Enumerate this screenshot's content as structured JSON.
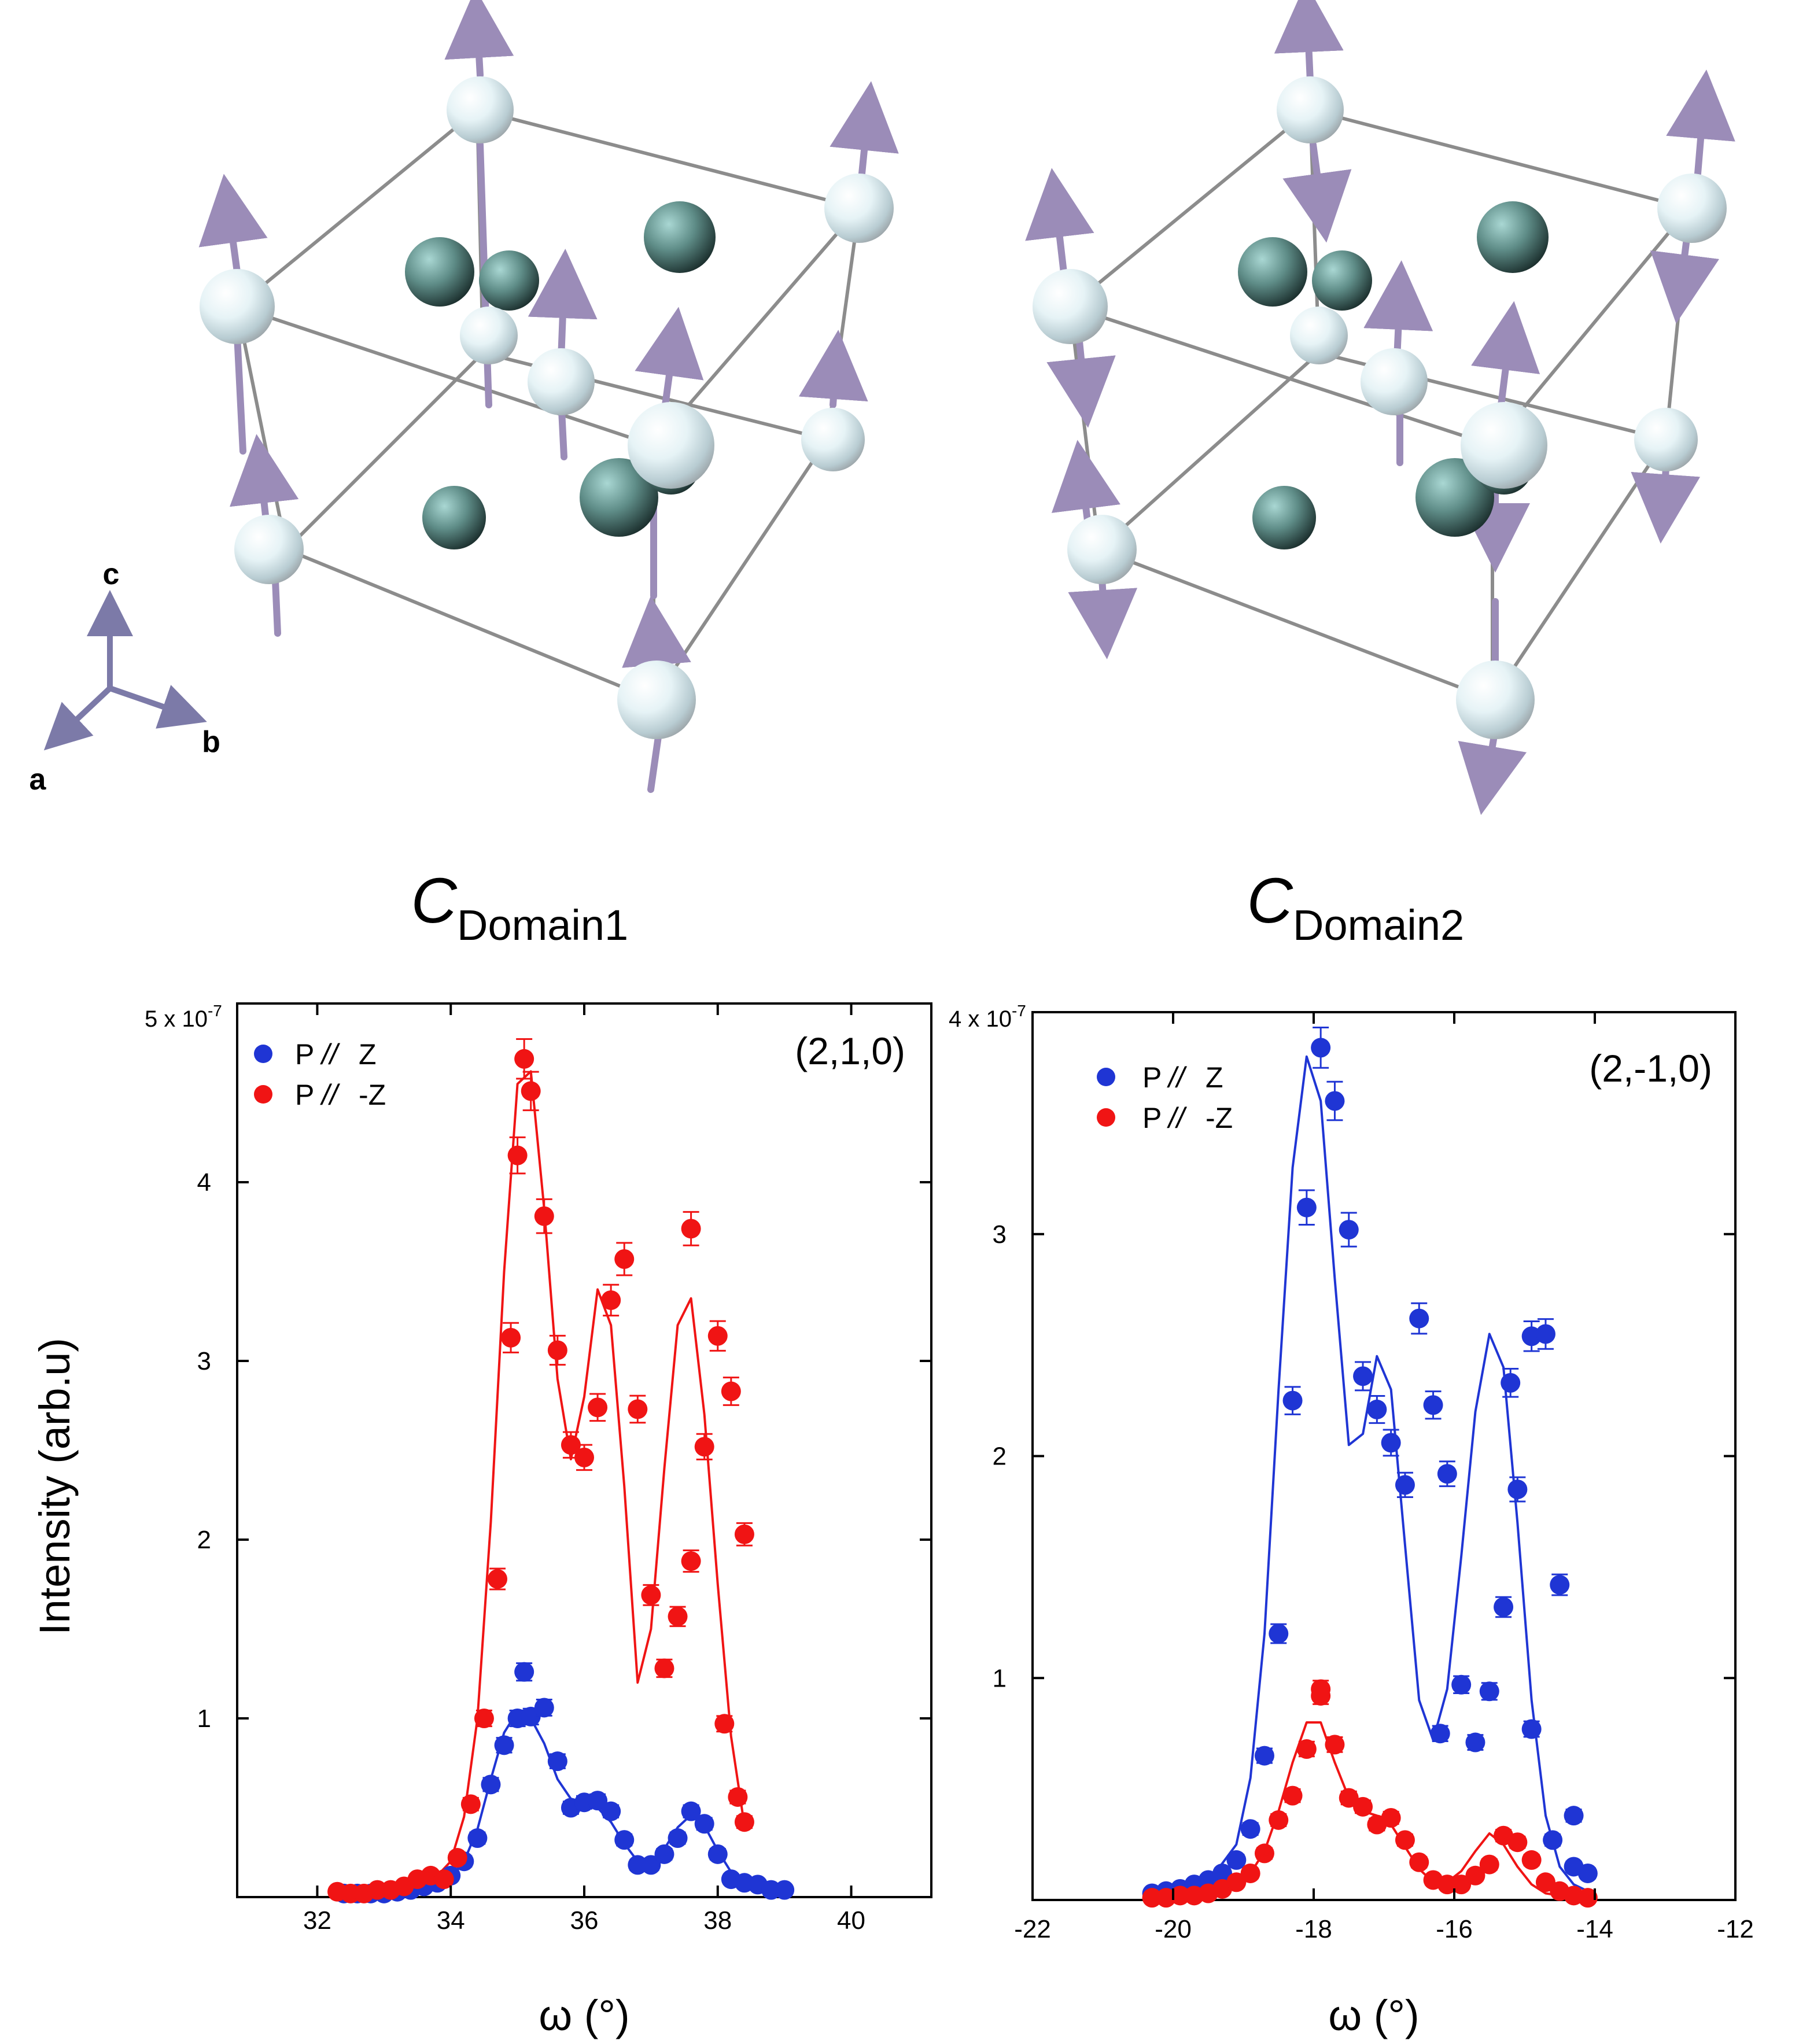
{
  "figure": {
    "axis_triad": {
      "c_label": "c",
      "a_label": "a",
      "b_label": "b"
    },
    "domain_panels": [
      {
        "label_c": "C",
        "label_sub": "Domain1"
      },
      {
        "label_c": "C",
        "label_sub": "Domain2"
      }
    ],
    "colors": {
      "blue": "#1f35d4",
      "red": "#f01414",
      "spin_arrow": "#9b8cb8",
      "bond": "#8c8c8c"
    }
  },
  "chart_data": [
    {
      "type": "scatter",
      "title": "(2,1,0)",
      "xlabel": "ω (°)",
      "ylabel": "Intensity (arb.u)",
      "y_scale_label": "5 x 10",
      "y_scale_exp": "-7",
      "xlim": [
        30.8,
        41.2
      ],
      "ylim": [
        0,
        5
      ],
      "x_ticks": [
        "32",
        "34",
        "36",
        "38",
        "40"
      ],
      "x_tick_values": [
        32,
        34,
        36,
        38,
        40
      ],
      "y_ticks": [
        "1",
        "2",
        "3",
        "4"
      ],
      "y_tick_values": [
        1,
        2,
        3,
        4
      ],
      "legend": {
        "position": "top-left",
        "entries": [
          {
            "name": "P // Z",
            "label": "P",
            "suffix": "Z",
            "color": "#1f35d4"
          },
          {
            "name": "P // -Z",
            "label": "P",
            "suffix": "-Z",
            "color": "#f01414"
          }
        ]
      },
      "series": [
        {
          "name": "P // Z",
          "color": "#1f35d4",
          "x": [
            32.4,
            32.6,
            32.8,
            33.0,
            33.2,
            33.4,
            33.6,
            33.8,
            34.0,
            34.2,
            34.4,
            34.6,
            34.8,
            35.0,
            35.2,
            35.4,
            35.6,
            35.8,
            36.0,
            36.2,
            36.4,
            36.6,
            36.8,
            37.0,
            37.2,
            37.4,
            37.6,
            37.8,
            38.0,
            38.2,
            38.4,
            38.6,
            38.8,
            39.0
          ],
          "y": [
            0.02,
            0.02,
            0.02,
            0.02,
            0.03,
            0.04,
            0.06,
            0.08,
            0.12,
            0.2,
            0.33,
            0.63,
            0.85,
            1.0,
            1.01,
            1.06,
            0.76,
            0.5,
            0.53,
            0.54,
            0.48,
            0.32,
            0.18,
            0.18,
            0.24,
            0.33,
            0.48,
            0.41,
            0.24,
            0.1,
            0.08,
            0.07,
            0.04,
            0.04
          ],
          "extra": [
            {
              "x": 35.1,
              "y": 1.26
            }
          ],
          "fit_x": [
            32.4,
            32.8,
            33.2,
            33.6,
            34.0,
            34.2,
            34.4,
            34.6,
            34.8,
            35.0,
            35.2,
            35.4,
            35.6,
            35.8,
            36.0,
            36.2,
            36.4,
            36.6,
            36.8,
            37.0,
            37.2,
            37.4,
            37.6,
            37.8,
            38.0,
            38.2,
            38.4,
            38.6,
            38.8,
            39.0
          ],
          "fit_y": [
            0.01,
            0.01,
            0.02,
            0.04,
            0.1,
            0.2,
            0.38,
            0.66,
            0.92,
            1.04,
            1.0,
            0.86,
            0.66,
            0.55,
            0.53,
            0.5,
            0.42,
            0.3,
            0.2,
            0.19,
            0.27,
            0.39,
            0.46,
            0.4,
            0.26,
            0.14,
            0.08,
            0.05,
            0.03,
            0.02
          ]
        },
        {
          "name": "P // -Z",
          "color": "#f01414",
          "x": [
            32.3,
            32.5,
            32.7,
            32.9,
            33.1,
            33.3,
            33.5,
            33.7,
            33.9,
            34.1,
            34.3,
            34.5,
            34.7,
            34.9,
            35.0,
            35.2,
            35.4,
            35.6,
            35.8,
            36.0,
            36.2,
            36.4,
            36.6,
            36.8,
            37.0,
            37.2,
            37.4,
            37.6,
            37.8,
            38.0,
            38.2,
            38.4
          ],
          "y": [
            0.03,
            0.02,
            0.02,
            0.04,
            0.04,
            0.06,
            0.1,
            0.12,
            0.1,
            0.22,
            0.52,
            1.0,
            1.78,
            3.13,
            4.15,
            4.51,
            3.81,
            3.06,
            2.53,
            2.46,
            2.74,
            3.34,
            3.57,
            2.73,
            1.69,
            1.28,
            1.57,
            1.88,
            2.52,
            3.14,
            2.83,
            2.03
          ],
          "extra": [
            {
              "x": 35.1,
              "y": 4.69
            },
            {
              "x": 37.6,
              "y": 3.74
            },
            {
              "x": 38.1,
              "y": 0.97
            },
            {
              "x": 38.3,
              "y": 0.56
            },
            {
              "x": 38.4,
              "y": 0.42
            }
          ],
          "fit_x": [
            32.3,
            32.8,
            33.3,
            33.8,
            34.0,
            34.2,
            34.4,
            34.6,
            34.8,
            35.0,
            35.2,
            35.4,
            35.6,
            35.8,
            36.0,
            36.2,
            36.4,
            36.6,
            36.8,
            37.0,
            37.2,
            37.4,
            37.6,
            37.8,
            38.0,
            38.2,
            38.4
          ],
          "fit_y": [
            0.02,
            0.03,
            0.06,
            0.12,
            0.2,
            0.45,
            1.0,
            2.1,
            3.5,
            4.55,
            4.62,
            3.85,
            2.9,
            2.45,
            2.8,
            3.4,
            3.2,
            2.3,
            1.2,
            1.5,
            2.4,
            3.2,
            3.35,
            2.7,
            1.75,
            0.9,
            0.4
          ]
        }
      ]
    },
    {
      "type": "scatter",
      "title": "(2,-1,0)",
      "xlabel": "ω (°)",
      "ylabel": "",
      "y_scale_label": "4 x 10",
      "y_scale_exp": "-7",
      "xlim": [
        -22,
        -12
      ],
      "ylim": [
        0,
        4
      ],
      "x_ticks": [
        "-22",
        "-20",
        "-18",
        "-16",
        "-14",
        "-12"
      ],
      "x_tick_values": [
        -22,
        -20,
        -18,
        -16,
        -14,
        -12
      ],
      "y_ticks": [
        "1",
        "2",
        "3"
      ],
      "y_tick_values": [
        1,
        2,
        3
      ],
      "legend": {
        "position": "top-left",
        "entries": [
          {
            "name": "P // Z",
            "label": "P",
            "suffix": "Z",
            "color": "#1f35d4"
          },
          {
            "name": "P // -Z",
            "label": "P",
            "suffix": "-Z",
            "color": "#f01414"
          }
        ]
      },
      "series": [
        {
          "name": "P // Z",
          "color": "#1f35d4",
          "x": [
            -20.3,
            -20.1,
            -19.9,
            -19.7,
            -19.5,
            -19.3,
            -19.1,
            -18.9,
            -18.7,
            -18.5,
            -18.3,
            -18.1,
            -17.9,
            -17.7,
            -17.5,
            -17.3,
            -17.1,
            -16.9,
            -16.7,
            -16.5,
            -16.3,
            -16.1,
            -15.9,
            -15.7,
            -15.5,
            -15.3,
            -15.1,
            -14.9,
            -14.7,
            -14.5,
            -14.3,
            -14.1
          ],
          "y": [
            0.03,
            0.04,
            0.05,
            0.07,
            0.09,
            0.12,
            0.18,
            0.32,
            0.65,
            1.2,
            2.25,
            3.12,
            3.84,
            3.6,
            3.02,
            2.36,
            2.21,
            2.06,
            1.87,
            2.62,
            2.23,
            1.92,
            0.97,
            0.71,
            0.94,
            1.32,
            1.85,
            2.54,
            2.55,
            1.42,
            0.38,
            0.12
          ],
          "extra": [
            {
              "x": -16.2,
              "y": 0.75
            },
            {
              "x": -15.2,
              "y": 2.33
            },
            {
              "x": -14.9,
              "y": 0.77
            },
            {
              "x": -14.6,
              "y": 0.27
            },
            {
              "x": -14.3,
              "y": 0.15
            }
          ],
          "fit_x": [
            -20.3,
            -19.9,
            -19.5,
            -19.1,
            -18.9,
            -18.7,
            -18.5,
            -18.3,
            -18.1,
            -17.9,
            -17.7,
            -17.5,
            -17.3,
            -17.1,
            -16.9,
            -16.7,
            -16.5,
            -16.3,
            -16.1,
            -15.9,
            -15.7,
            -15.5,
            -15.3,
            -15.1,
            -14.9,
            -14.7,
            -14.5,
            -14.3,
            -14.1
          ],
          "fit_y": [
            0.02,
            0.04,
            0.08,
            0.25,
            0.55,
            1.2,
            2.3,
            3.3,
            3.8,
            3.6,
            2.8,
            2.05,
            2.1,
            2.45,
            2.3,
            1.6,
            0.9,
            0.72,
            0.95,
            1.55,
            2.2,
            2.55,
            2.4,
            1.7,
            0.9,
            0.38,
            0.15,
            0.07,
            0.04
          ]
        },
        {
          "name": "P // -Z",
          "color": "#f01414",
          "x": [
            -20.3,
            -20.1,
            -19.9,
            -19.7,
            -19.5,
            -19.3,
            -19.1,
            -18.9,
            -18.7,
            -18.5,
            -18.3,
            -18.1,
            -17.9,
            -17.7,
            -17.5,
            -17.3,
            -17.1,
            -16.9,
            -16.7,
            -16.5,
            -16.3,
            -16.1,
            -15.9,
            -15.7,
            -15.5,
            -15.3,
            -15.1,
            -14.9,
            -14.7,
            -14.5,
            -14.3,
            -14.1
          ],
          "y": [
            0.01,
            0.01,
            0.02,
            0.02,
            0.03,
            0.05,
            0.08,
            0.12,
            0.21,
            0.36,
            0.47,
            0.68,
            0.95,
            0.7,
            0.46,
            0.42,
            0.34,
            0.37,
            0.27,
            0.17,
            0.09,
            0.07,
            0.07,
            0.11,
            0.16,
            0.29,
            0.26,
            0.18,
            0.08,
            0.04,
            0.02,
            0.01
          ],
          "extra": [
            {
              "x": -17.9,
              "y": 0.92
            }
          ],
          "fit_x": [
            -20.3,
            -19.9,
            -19.5,
            -19.1,
            -18.9,
            -18.7,
            -18.5,
            -18.3,
            -18.1,
            -17.9,
            -17.7,
            -17.5,
            -17.3,
            -17.1,
            -16.9,
            -16.7,
            -16.5,
            -16.3,
            -16.1,
            -15.9,
            -15.7,
            -15.5,
            -15.3,
            -15.1,
            -14.9,
            -14.7,
            -14.5,
            -14.3,
            -14.1
          ],
          "fit_y": [
            0.01,
            0.02,
            0.03,
            0.07,
            0.12,
            0.22,
            0.4,
            0.62,
            0.8,
            0.8,
            0.62,
            0.46,
            0.4,
            0.38,
            0.34,
            0.24,
            0.14,
            0.08,
            0.08,
            0.13,
            0.22,
            0.3,
            0.25,
            0.15,
            0.07,
            0.03,
            0.02,
            0.01,
            0.01
          ]
        }
      ]
    }
  ]
}
